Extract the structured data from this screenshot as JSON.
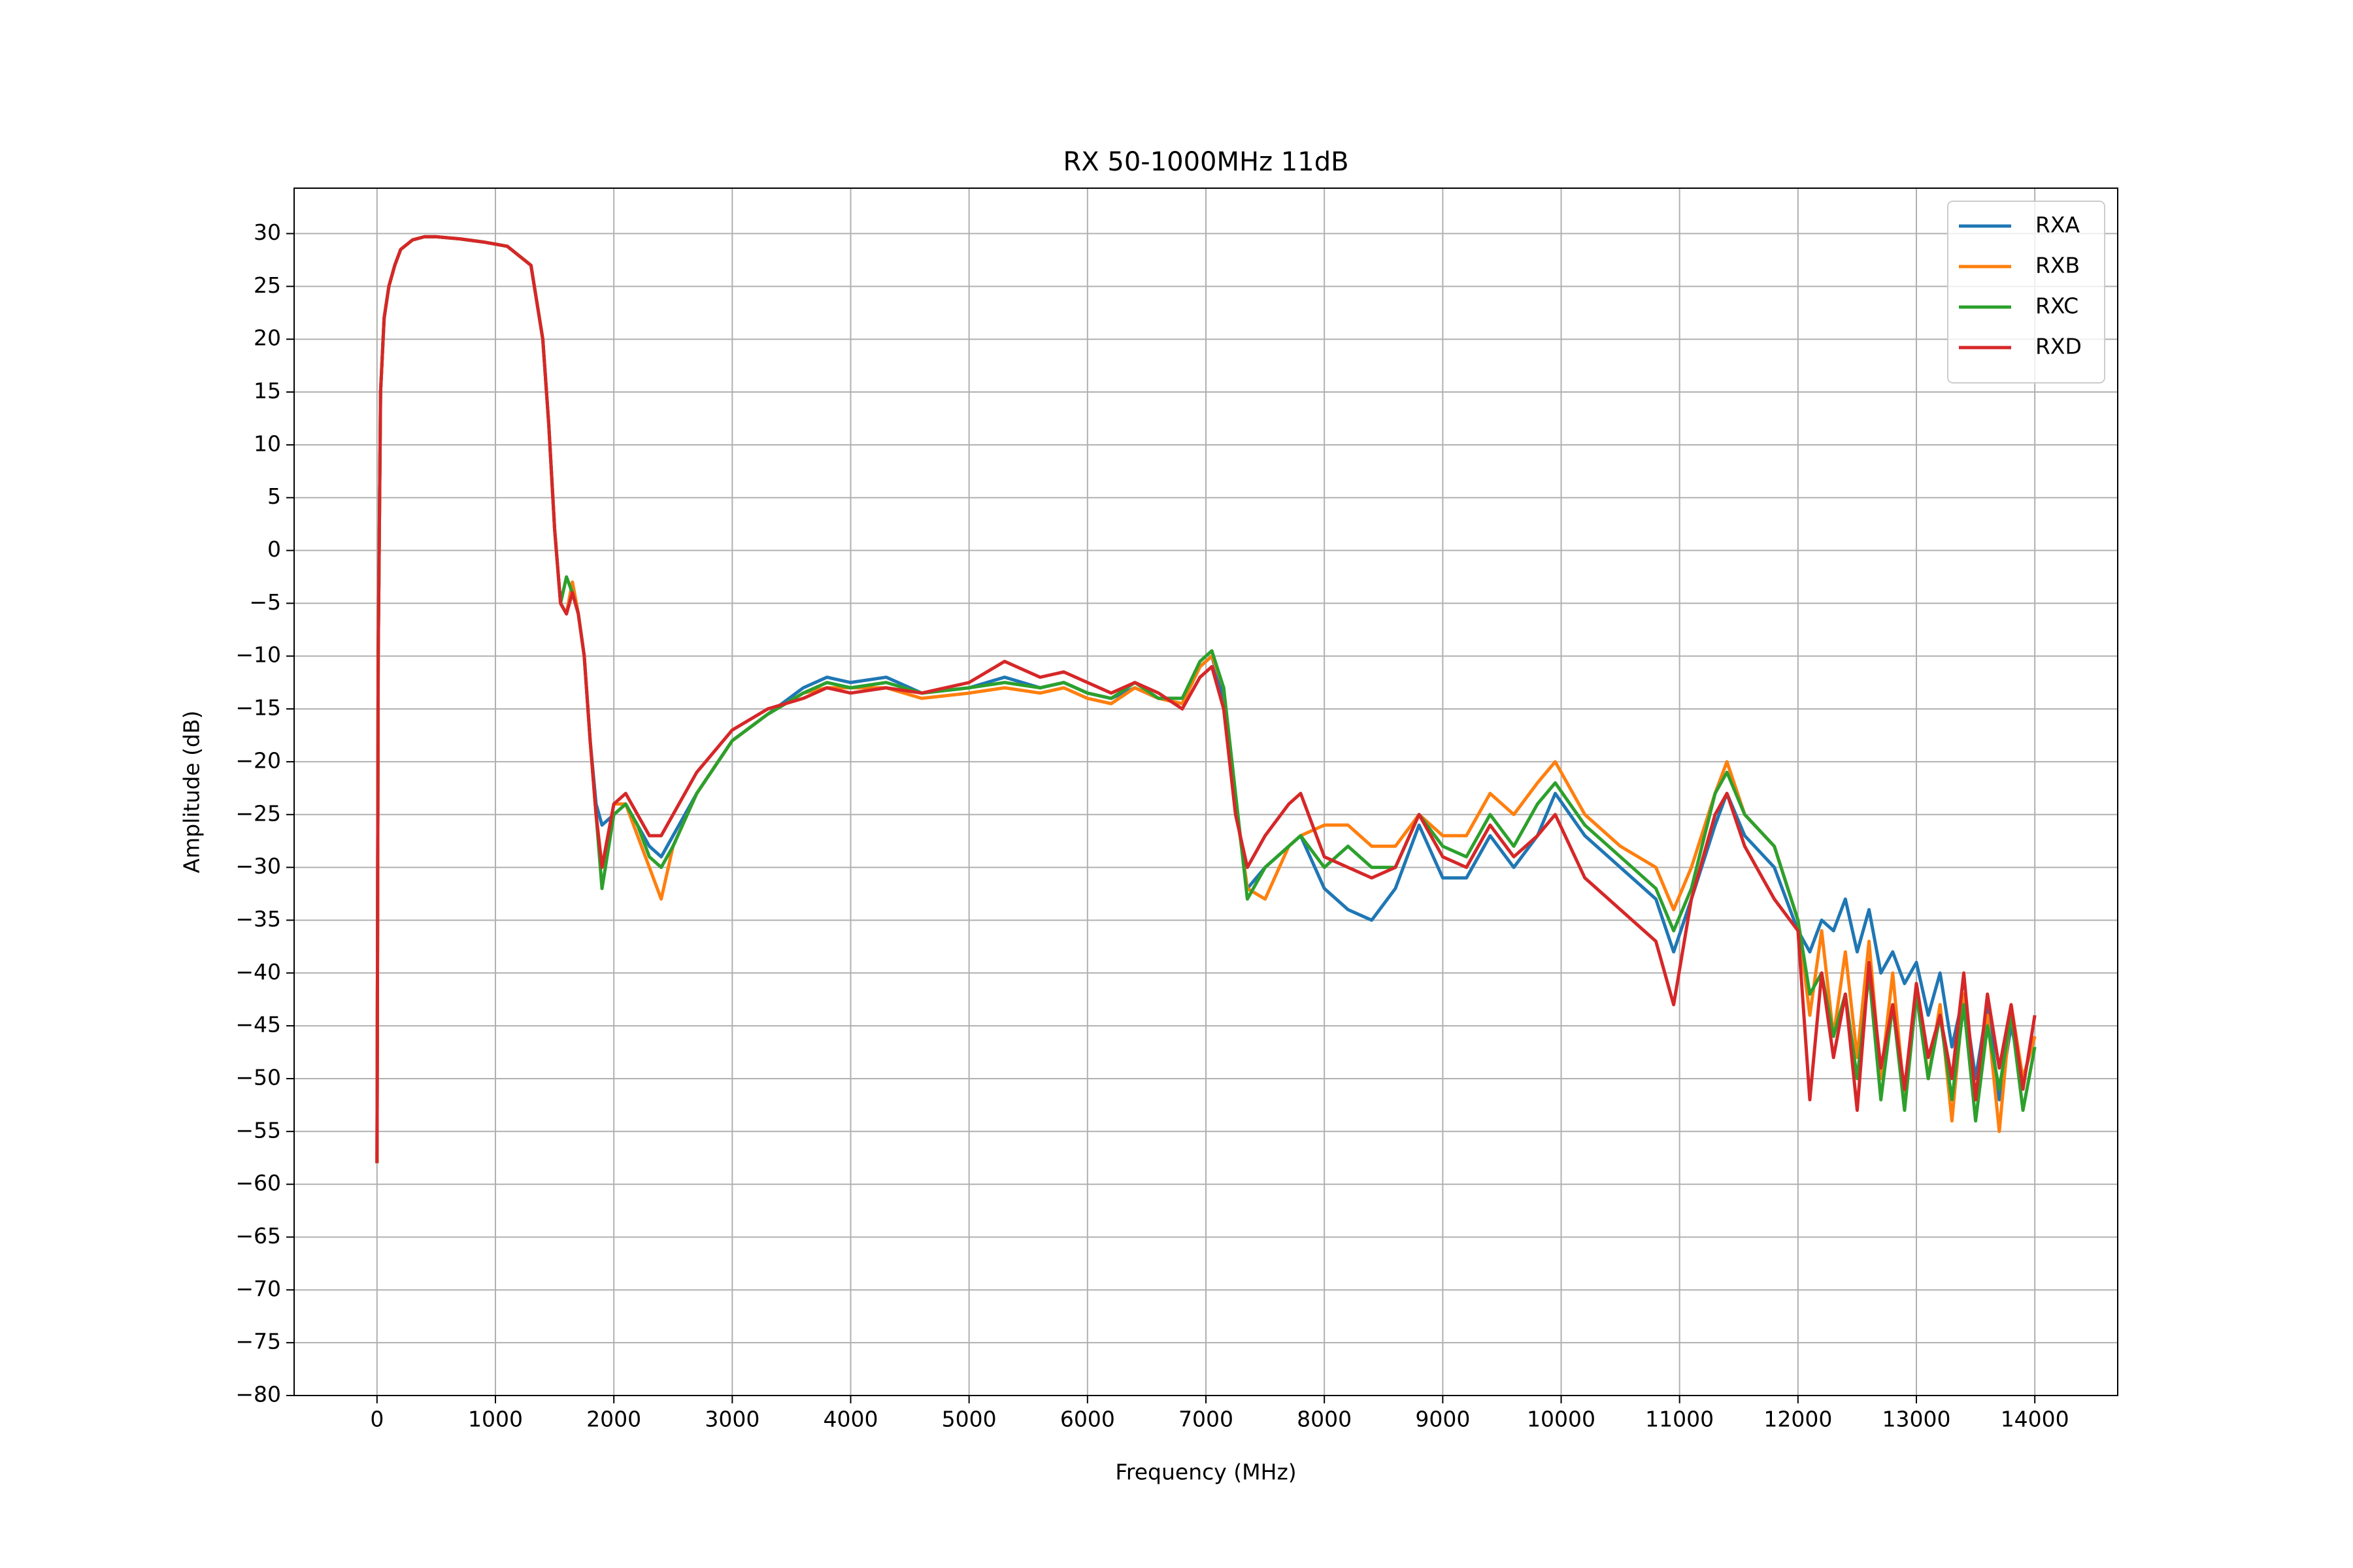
{
  "chart_data": {
    "type": "line",
    "title": "RX 50-1000MHz 11dB",
    "xlabel": "Frequency (MHz)",
    "ylabel": "Amplitude (dB)",
    "x": [
      0,
      10,
      30,
      60,
      100,
      150,
      200,
      300,
      400,
      500,
      700,
      900,
      1100,
      1300,
      1400,
      1450,
      1500,
      1550,
      1600,
      1650,
      1700,
      1750,
      1800,
      1850,
      1900,
      2000,
      2100,
      2200,
      2300,
      2400,
      2500,
      2700,
      3000,
      3300,
      3600,
      3800,
      4000,
      4300,
      4600,
      5000,
      5300,
      5600,
      5800,
      6000,
      6200,
      6400,
      6600,
      6800,
      6950,
      7050,
      7150,
      7250,
      7350,
      7500,
      7700,
      7800,
      8000,
      8200,
      8400,
      8600,
      8800,
      9000,
      9200,
      9400,
      9600,
      9800,
      9950,
      10200,
      10500,
      10800,
      10950,
      11100,
      11300,
      11400,
      11550,
      11800,
      12000,
      12100,
      12200,
      12300,
      12400,
      12500,
      12600,
      12700,
      12800,
      12900,
      13000,
      13100,
      13200,
      13300,
      13400,
      13500,
      13600,
      13700,
      13800,
      13900,
      14000
    ],
    "series": [
      {
        "name": "RXA",
        "color": "#1f77b4",
        "values": [
          -58,
          -10,
          15,
          22,
          25,
          27,
          28.5,
          29.4,
          29.7,
          29.7,
          29.5,
          29.2,
          28.8,
          27,
          20,
          12,
          2,
          -5,
          -6,
          -3,
          -6,
          -10,
          -18,
          -24,
          -26,
          -25,
          -24,
          -26,
          -28,
          -29,
          -27,
          -23,
          -18,
          -15.5,
          -13,
          -12,
          -12.5,
          -12,
          -13.5,
          -13,
          -12,
          -13,
          -12.5,
          -13.5,
          -14,
          -13,
          -14,
          -14,
          -11,
          -10,
          -14,
          -24,
          -32,
          -30,
          -28,
          -27,
          -32,
          -34,
          -35,
          -32,
          -26,
          -31,
          -31,
          -27,
          -30,
          -27,
          -23,
          -27,
          -30,
          -33,
          -38,
          -33,
          -26,
          -23,
          -27,
          -30,
          -36,
          -38,
          -35,
          -36,
          -33,
          -38,
          -34,
          -40,
          -38,
          -41,
          -39,
          -44,
          -40,
          -47,
          -42,
          -50,
          -43,
          -52,
          -45,
          -50,
          -46
        ]
      },
      {
        "name": "RXB",
        "color": "#ff7f0e",
        "values": [
          -58,
          -10,
          15,
          22,
          25,
          27,
          28.5,
          29.4,
          29.7,
          29.7,
          29.5,
          29.2,
          28.8,
          27,
          20,
          12,
          2,
          -5,
          -6,
          -3,
          -6,
          -10,
          -18,
          -25,
          -30,
          -24,
          -24,
          -27,
          -30,
          -33,
          -28,
          -23,
          -18,
          -15.5,
          -13.5,
          -13,
          -13,
          -13,
          -14,
          -13.5,
          -13,
          -13.5,
          -13,
          -14,
          -14.5,
          -13,
          -14,
          -14.5,
          -11,
          -10,
          -13,
          -24,
          -32,
          -33,
          -28,
          -27,
          -26,
          -26,
          -28,
          -28,
          -25,
          -27,
          -27,
          -23,
          -25,
          -22,
          -20,
          -25,
          -28,
          -30,
          -34,
          -30,
          -23,
          -20,
          -25,
          -28,
          -35,
          -44,
          -36,
          -46,
          -38,
          -48,
          -37,
          -50,
          -40,
          -52,
          -41,
          -50,
          -43,
          -54,
          -42,
          -52,
          -44,
          -55,
          -43,
          -50,
          -46
        ]
      },
      {
        "name": "RXC",
        "color": "#2ca02c",
        "values": [
          -58,
          -10,
          15,
          22,
          25,
          27,
          28.5,
          29.4,
          29.7,
          29.7,
          29.5,
          29.2,
          28.8,
          27,
          20,
          12,
          2,
          -5,
          -2.5,
          -4,
          -6,
          -10,
          -18,
          -25,
          -32,
          -25,
          -24,
          -26,
          -29,
          -30,
          -28,
          -23,
          -18,
          -15.5,
          -13.5,
          -12.5,
          -13,
          -12.5,
          -13.5,
          -13,
          -12.5,
          -13,
          -12.5,
          -13.5,
          -14,
          -12.5,
          -14,
          -14,
          -10.5,
          -9.5,
          -13,
          -23,
          -33,
          -30,
          -28,
          -27,
          -30,
          -28,
          -30,
          -30,
          -25,
          -28,
          -29,
          -25,
          -28,
          -24,
          -22,
          -26,
          -29,
          -32,
          -36,
          -32,
          -23,
          -21,
          -25,
          -28,
          -35,
          -42,
          -40,
          -46,
          -42,
          -50,
          -40,
          -52,
          -43,
          -53,
          -42,
          -50,
          -44,
          -52,
          -43,
          -54,
          -45,
          -51,
          -44,
          -53,
          -47
        ]
      },
      {
        "name": "RXD",
        "color": "#d62728",
        "values": [
          -58,
          -10,
          15,
          22,
          25,
          27,
          28.5,
          29.4,
          29.7,
          29.7,
          29.5,
          29.2,
          28.8,
          27,
          20,
          12,
          2,
          -5,
          -6,
          -4,
          -6,
          -10,
          -18,
          -25,
          -30,
          -24,
          -23,
          -25,
          -27,
          -27,
          -25,
          -21,
          -17,
          -15,
          -14,
          -13,
          -13.5,
          -13,
          -13.5,
          -12.5,
          -10.5,
          -12,
          -11.5,
          -12.5,
          -13.5,
          -12.5,
          -13.5,
          -15,
          -12,
          -11,
          -15,
          -25,
          -30,
          -27,
          -24,
          -23,
          -29,
          -30,
          -31,
          -30,
          -25,
          -29,
          -30,
          -26,
          -29,
          -27,
          -25,
          -31,
          -34,
          -37,
          -43,
          -33,
          -25,
          -23,
          -28,
          -33,
          -36,
          -52,
          -40,
          -48,
          -42,
          -53,
          -39,
          -49,
          -43,
          -51,
          -41,
          -48,
          -44,
          -50,
          -40,
          -52,
          -42,
          -49,
          -43,
          -51,
          -44
        ]
      }
    ],
    "xlim": [
      -700,
      14700
    ],
    "ylim": [
      -80,
      34.3
    ],
    "xticks": [
      0,
      1000,
      2000,
      3000,
      4000,
      5000,
      6000,
      7000,
      8000,
      9000,
      10000,
      11000,
      12000,
      13000,
      14000
    ],
    "yticks": [
      {
        "value": -80,
        "label": "−80"
      },
      {
        "value": -75,
        "label": "−75"
      },
      {
        "value": -70,
        "label": "−70"
      },
      {
        "value": -65,
        "label": "−65"
      },
      {
        "value": -60,
        "label": "−60"
      },
      {
        "value": -55,
        "label": "−55"
      },
      {
        "value": -50,
        "label": "−50"
      },
      {
        "value": -45,
        "label": "−45"
      },
      {
        "value": -40,
        "label": "−40"
      },
      {
        "value": -35,
        "label": "−35"
      },
      {
        "value": -30,
        "label": "−30"
      },
      {
        "value": -25,
        "label": "−25"
      },
      {
        "value": -20,
        "label": "−20"
      },
      {
        "value": -15,
        "label": "−15"
      },
      {
        "value": -10,
        "label": "−10"
      },
      {
        "value": -5,
        "label": "−5"
      },
      0,
      5,
      10,
      15,
      20,
      25,
      30
    ],
    "grid": true,
    "legend": "upper right"
  }
}
